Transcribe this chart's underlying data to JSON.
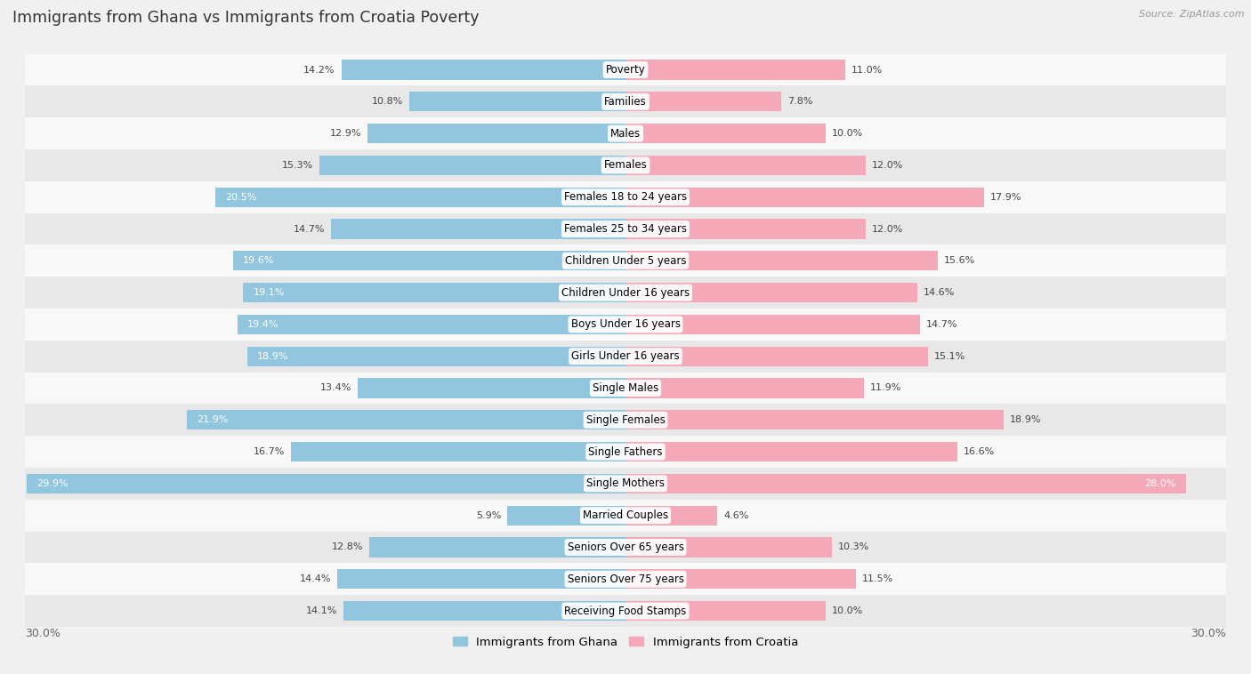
{
  "title": "Immigrants from Ghana vs Immigrants from Croatia Poverty",
  "source": "Source: ZipAtlas.com",
  "categories": [
    "Poverty",
    "Families",
    "Males",
    "Females",
    "Females 18 to 24 years",
    "Females 25 to 34 years",
    "Children Under 5 years",
    "Children Under 16 years",
    "Boys Under 16 years",
    "Girls Under 16 years",
    "Single Males",
    "Single Females",
    "Single Fathers",
    "Single Mothers",
    "Married Couples",
    "Seniors Over 65 years",
    "Seniors Over 75 years",
    "Receiving Food Stamps"
  ],
  "ghana_values": [
    14.2,
    10.8,
    12.9,
    15.3,
    20.5,
    14.7,
    19.6,
    19.1,
    19.4,
    18.9,
    13.4,
    21.9,
    16.7,
    29.9,
    5.9,
    12.8,
    14.4,
    14.1
  ],
  "croatia_values": [
    11.0,
    7.8,
    10.0,
    12.0,
    17.9,
    12.0,
    15.6,
    14.6,
    14.7,
    15.1,
    11.9,
    18.9,
    16.6,
    28.0,
    4.6,
    10.3,
    11.5,
    10.0
  ],
  "ghana_color": "#92C5DE",
  "croatia_color": "#F4A8B8",
  "bar_height": 0.62,
  "xlim": 30.0,
  "bg_color": "#f0f0f0",
  "row_bg_even": "#f8f8f8",
  "row_bg_odd": "#e8e8e8",
  "label_fontsize": 8.5,
  "value_fontsize": 8.0,
  "title_fontsize": 12.5,
  "white_text_threshold_ghana": 17.0,
  "white_text_threshold_croatia": 24.0
}
